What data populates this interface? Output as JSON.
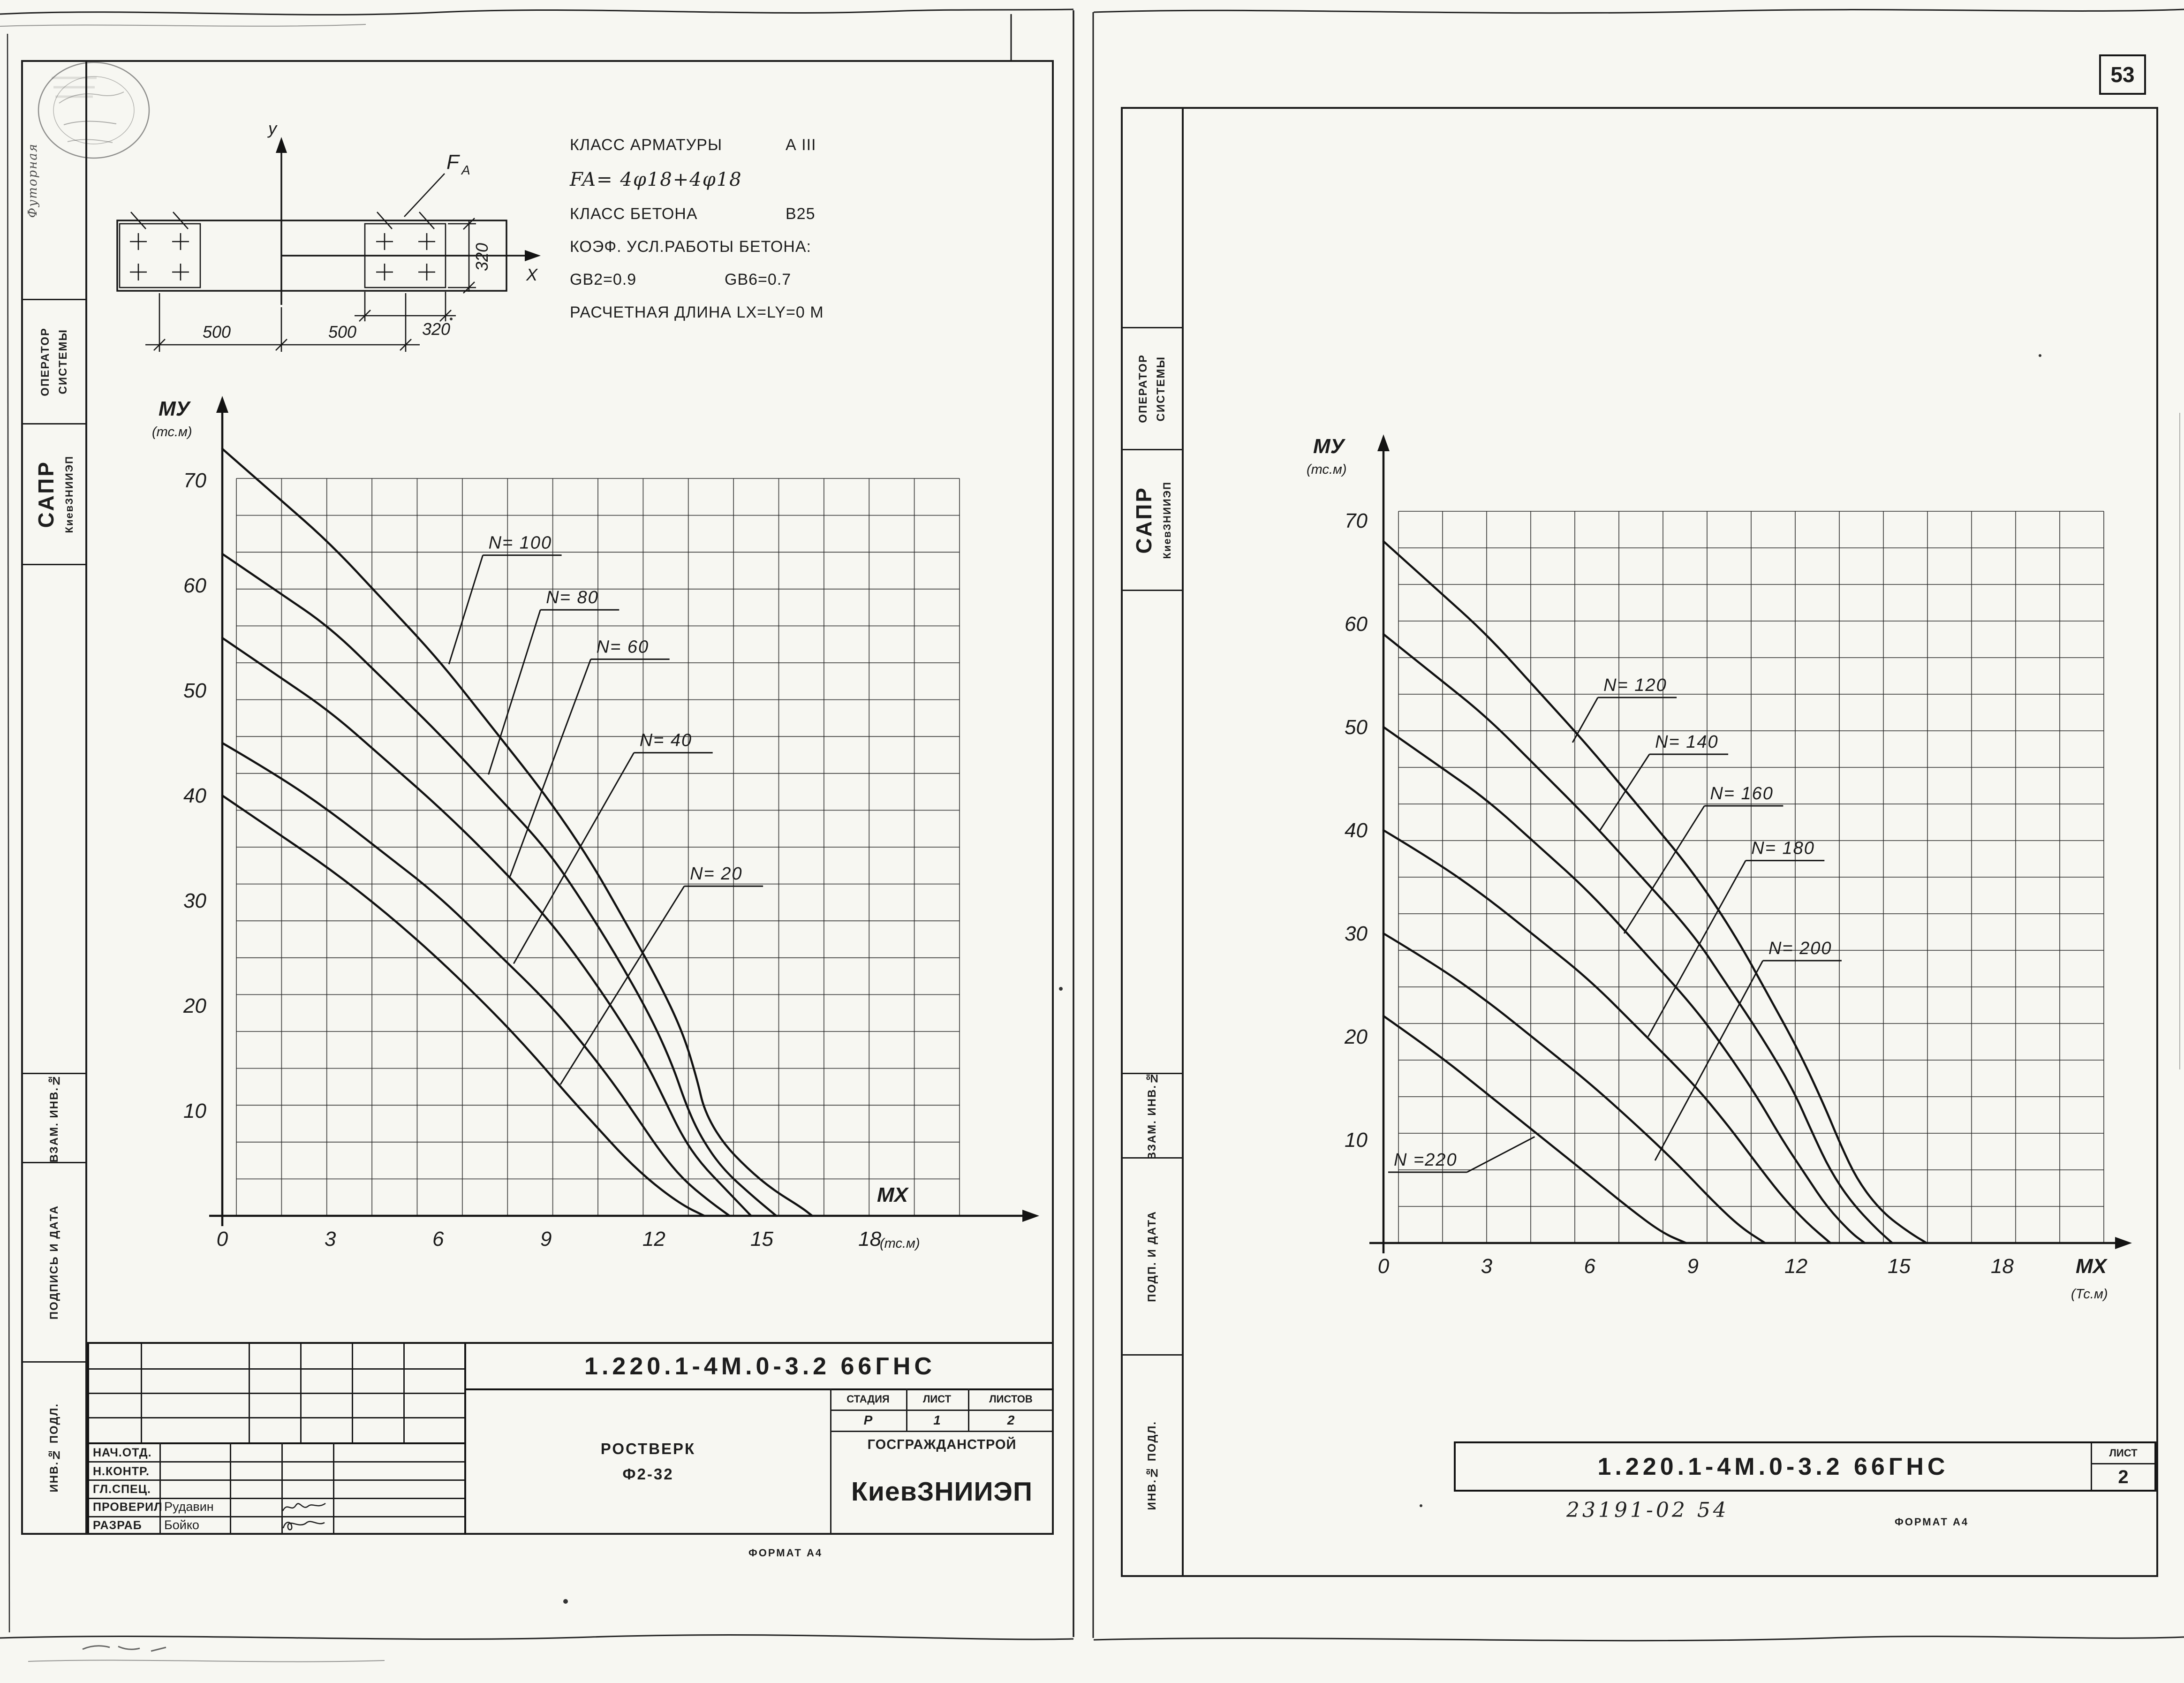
{
  "page_number": "53",
  "left_sheet": {
    "sidebar": {
      "stamp_text": "Футорная",
      "operator_line1": "ОПЕРАТОР",
      "operator_line2": "СИСТЕМЫ",
      "cad": "САПР",
      "cad_org": "КиевЗНИИЭП",
      "vzam": "ВЗАМ. ИНВ.№",
      "podpis": "ПОДПИСЬ И ДАТА",
      "inv": "ИНВ.№ ПОДЛ."
    },
    "section": {
      "axis_y": "у",
      "axis_x": "X",
      "fa_main": "F",
      "fa_sub": "A",
      "dim_left": "500",
      "dim_right": "500",
      "dim_height": "320",
      "dim_width": "320"
    },
    "specs": {
      "reinf_label": "КЛАСС АРМАТУРЫ",
      "reinf_value": "А III",
      "fa_line": "FA= 4φ18+4φ18",
      "concrete_label": "КЛАСС БЕТОНА",
      "concrete_value": "В25",
      "coef_line": "КОЭФ. УСЛ.РАБОТЫ БЕТОНА:",
      "gb2": "GB2=0.9",
      "gb6": "GB6=0.7",
      "length_line": "РАСЧЕТНАЯ ДЛИНА LX=LY=0 М"
    },
    "title_block": {
      "doc_number": "1.220.1-4М.0-3.2 66ГНС",
      "object_line1": "РОСТВЕРК",
      "object_line2": "Ф2-32",
      "stage_label": "СТАДИЯ",
      "sheet_label": "ЛИСТ",
      "sheets_label": "ЛИСТОВ",
      "stage": "Р",
      "sheet": "1",
      "sheets": "2",
      "org_line1": "ГОСГРАЖДАНСТРОЙ",
      "org_line2": "КиевЗНИИЭП",
      "roles": [
        {
          "role": "НАЧ.ОТД.",
          "name": ""
        },
        {
          "role": "Н.КОНТР.",
          "name": ""
        },
        {
          "role": "ГЛ.СПЕЦ.",
          "name": ""
        },
        {
          "role": "ПРОВЕРИЛ",
          "name": "Рудавин"
        },
        {
          "role": "РАЗРАБ",
          "name": "Бойко"
        }
      ],
      "format_note": "ФОРМАТ А4"
    }
  },
  "right_sheet": {
    "sidebar": {
      "operator_line1": "ОПЕРАТОР",
      "operator_line2": "СИСТЕМЫ",
      "cad": "САПР",
      "cad_org": "КиевЗНИИЭП",
      "vzam": "ВЗАМ. ИНВ.№",
      "podpis": "ПОДП. И ДАТА",
      "inv": "ИНВ.№ ПОДЛ."
    },
    "title_block": {
      "doc_number": "1.220.1-4М.0-3.2 66ГНС",
      "sheet_label": "ЛИСТ",
      "sheet": "2"
    },
    "handwritten_note": "23191-02    54",
    "format_note": "ФОРМАТ А4"
  },
  "chart_data": [
    {
      "type": "line",
      "title": "",
      "xlabel": "МХ",
      "xlabel_units": "(тс.м)",
      "ylabel": "МУ",
      "ylabel_units": "(тс.м)",
      "x_ticks": [
        0,
        3,
        6,
        9,
        12,
        15,
        18
      ],
      "y_ticks": [
        10,
        20,
        30,
        40,
        50,
        60,
        70
      ],
      "xlim": [
        0,
        20
      ],
      "ylim": [
        0,
        74
      ],
      "grid": true,
      "legend_position": "inline-labels",
      "series": [
        {
          "name": "N= 100",
          "label": {
            "x": 7.4,
            "y": 63.5,
            "ax": 6.3,
            "ay": 52.5
          },
          "points": [
            [
              0,
              73
            ],
            [
              1.5,
              68.5
            ],
            [
              3,
              64
            ],
            [
              4.5,
              58.5
            ],
            [
              6,
              53
            ],
            [
              7.5,
              46.5
            ],
            [
              9,
              40
            ],
            [
              10.2,
              34
            ],
            [
              11.2,
              28
            ],
            [
              12.1,
              22.5
            ],
            [
              12.8,
              17.5
            ],
            [
              13.2,
              13
            ],
            [
              13.4,
              10
            ],
            [
              13.9,
              7
            ],
            [
              14.6,
              4.5
            ],
            [
              15.3,
              2.5
            ],
            [
              16.1,
              0.8
            ],
            [
              16.4,
              0
            ]
          ]
        },
        {
          "name": "N= 80",
          "label": {
            "x": 9.0,
            "y": 58.3,
            "ax": 7.4,
            "ay": 42
          },
          "points": [
            [
              0,
              63
            ],
            [
              1.5,
              59.5
            ],
            [
              3,
              56
            ],
            [
              4.5,
              51
            ],
            [
              6,
              46
            ],
            [
              7.5,
              40.5
            ],
            [
              9,
              35
            ],
            [
              10,
              30
            ],
            [
              11,
              24.5
            ],
            [
              11.9,
              19
            ],
            [
              12.5,
              14.5
            ],
            [
              12.9,
              10.5
            ],
            [
              13.3,
              7.5
            ],
            [
              13.9,
              4.5
            ],
            [
              14.7,
              2
            ],
            [
              15.4,
              0
            ]
          ]
        },
        {
          "name": "N= 60",
          "label": {
            "x": 10.4,
            "y": 53.6,
            "ax": 8.0,
            "ay": 32.3
          },
          "points": [
            [
              0,
              55
            ],
            [
              1.5,
              51.5
            ],
            [
              3,
              48
            ],
            [
              4.5,
              43.5
            ],
            [
              6,
              39
            ],
            [
              7.5,
              34
            ],
            [
              9,
              28.5
            ],
            [
              10,
              24
            ],
            [
              11,
              19
            ],
            [
              11.8,
              14.5
            ],
            [
              12.3,
              11
            ],
            [
              12.8,
              7.5
            ],
            [
              13.3,
              5
            ],
            [
              14,
              2.5
            ],
            [
              14.7,
              0
            ]
          ]
        },
        {
          "name": "N= 40",
          "label": {
            "x": 11.6,
            "y": 44.7,
            "ax": 8.1,
            "ay": 24
          },
          "points": [
            [
              0,
              45
            ],
            [
              1.5,
              42
            ],
            [
              3,
              38.5
            ],
            [
              4.5,
              34.5
            ],
            [
              6,
              30.5
            ],
            [
              7.5,
              25.5
            ],
            [
              9,
              20.5
            ],
            [
              10,
              16.5
            ],
            [
              10.9,
              12.5
            ],
            [
              11.6,
              9
            ],
            [
              12.2,
              6
            ],
            [
              12.8,
              3.5
            ],
            [
              13.5,
              1.5
            ],
            [
              14.1,
              0
            ]
          ]
        },
        {
          "name": "N= 20",
          "label": {
            "x": 13.0,
            "y": 32,
            "ax": 9.4,
            "ay": 12.5
          },
          "points": [
            [
              0,
              40
            ],
            [
              1.5,
              36.5
            ],
            [
              3,
              33
            ],
            [
              4.5,
              29
            ],
            [
              6,
              24.5
            ],
            [
              7.5,
              19.5
            ],
            [
              8.6,
              15.5
            ],
            [
              9.6,
              11.5
            ],
            [
              10.4,
              8.5
            ],
            [
              11.2,
              5.5
            ],
            [
              12,
              3
            ],
            [
              12.8,
              1
            ],
            [
              13.4,
              0
            ]
          ]
        }
      ]
    },
    {
      "type": "line",
      "title": "",
      "xlabel": "МХ",
      "xlabel_units": "(Тс.м)",
      "ylabel": "МУ",
      "ylabel_units": "(тс.м)",
      "x_ticks": [
        0,
        3,
        6,
        9,
        12,
        15,
        18
      ],
      "y_ticks": [
        10,
        20,
        30,
        40,
        50,
        60,
        70
      ],
      "xlim": [
        0,
        20
      ],
      "ylim": [
        0,
        74
      ],
      "grid": true,
      "legend_position": "inline-labels",
      "series": [
        {
          "name": "N= 120",
          "label": {
            "x": 6.4,
            "y": 53.5,
            "ax": 5.5,
            "ay": 48.5
          },
          "points": [
            [
              0,
              68
            ],
            [
              1.5,
              63.5
            ],
            [
              3,
              59
            ],
            [
              4.5,
              53.5
            ],
            [
              6,
              48
            ],
            [
              7.5,
              42
            ],
            [
              9,
              36
            ],
            [
              10.2,
              30
            ],
            [
              11.2,
              24
            ],
            [
              12.1,
              18.5
            ],
            [
              12.8,
              13.5
            ],
            [
              13.3,
              9.5
            ],
            [
              13.8,
              6
            ],
            [
              14.5,
              3
            ],
            [
              15.3,
              1
            ],
            [
              15.8,
              0
            ]
          ]
        },
        {
          "name": "N= 140",
          "label": {
            "x": 7.9,
            "y": 48,
            "ax": 6.3,
            "ay": 40
          },
          "points": [
            [
              0,
              59
            ],
            [
              1.5,
              55
            ],
            [
              3,
              51
            ],
            [
              4.5,
              46
            ],
            [
              6,
              41
            ],
            [
              7.5,
              35.5
            ],
            [
              9,
              30
            ],
            [
              10,
              25
            ],
            [
              11,
              20
            ],
            [
              11.9,
              15
            ],
            [
              12.5,
              10.5
            ],
            [
              13,
              7
            ],
            [
              13.6,
              4
            ],
            [
              14.3,
              1.5
            ],
            [
              14.8,
              0
            ]
          ]
        },
        {
          "name": "N= 160",
          "label": {
            "x": 9.5,
            "y": 43,
            "ax": 7.0,
            "ay": 30
          },
          "points": [
            [
              0,
              50
            ],
            [
              1.5,
              46.5
            ],
            [
              3,
              43
            ],
            [
              4.5,
              38.5
            ],
            [
              6,
              34
            ],
            [
              7.5,
              28.5
            ],
            [
              9,
              23
            ],
            [
              10,
              18.5
            ],
            [
              10.9,
              14
            ],
            [
              11.6,
              10
            ],
            [
              12.3,
              6.5
            ],
            [
              12.9,
              3.5
            ],
            [
              13.6,
              1
            ],
            [
              14,
              0
            ]
          ]
        },
        {
          "name": "N= 180",
          "label": {
            "x": 10.7,
            "y": 37.7,
            "ax": 7.7,
            "ay": 20
          },
          "points": [
            [
              0,
              40
            ],
            [
              1.5,
              37
            ],
            [
              3,
              33.5
            ],
            [
              4.5,
              29.5
            ],
            [
              6,
              25.5
            ],
            [
              7.5,
              20.5
            ],
            [
              9,
              15.5
            ],
            [
              10,
              11.5
            ],
            [
              10.9,
              7.5
            ],
            [
              11.6,
              4.5
            ],
            [
              12.3,
              2
            ],
            [
              13,
              0
            ]
          ]
        },
        {
          "name": "N= 200",
          "label": {
            "x": 11.2,
            "y": 28,
            "ax": 7.9,
            "ay": 8
          },
          "points": [
            [
              0,
              30
            ],
            [
              1.5,
              27
            ],
            [
              3,
              23.5
            ],
            [
              4.5,
              19.5
            ],
            [
              6,
              15.5
            ],
            [
              7.5,
              11
            ],
            [
              8.6,
              7.5
            ],
            [
              9.6,
              4
            ],
            [
              10.4,
              1.5
            ],
            [
              11.1,
              0
            ]
          ]
        },
        {
          "name": "N =220",
          "label": {
            "x": 0.3,
            "y": 7.5,
            "ax": 4.4,
            "ay": 10.3
          },
          "points": [
            [
              0,
              22
            ],
            [
              1.5,
              18.5
            ],
            [
              3,
              14.5
            ],
            [
              4.5,
              10.5
            ],
            [
              6,
              6.5
            ],
            [
              7.1,
              3.5
            ],
            [
              8.1,
              1
            ],
            [
              8.8,
              0
            ]
          ]
        }
      ]
    }
  ]
}
